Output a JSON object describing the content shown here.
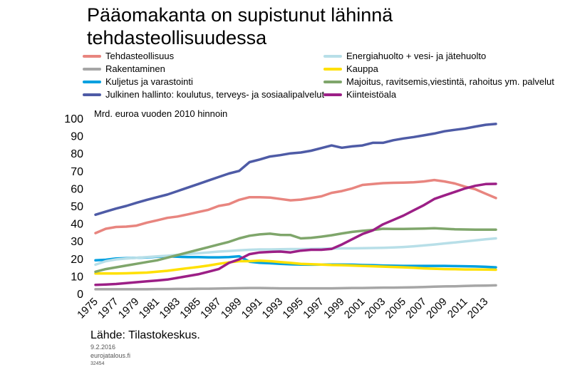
{
  "title": "Pääomakanta on supistunut lähinnä tehdasteollisuudessa",
  "unit_label": "Mrd. euroa vuoden 2010 hinnoin",
  "source": "Lähde: Tilastokeskus.",
  "date": "9.2.2016",
  "site": "eurojatalous.fi",
  "code": "32454",
  "chart_data": {
    "type": "line",
    "title": "Pääomakanta on supistunut lähinnä tehdasteollisuudessa",
    "ylabel": "Mrd. euroa vuoden 2010 hinnoin",
    "xlabel": "",
    "ylim": [
      0,
      100
    ],
    "xlim": [
      1975,
      2014
    ],
    "y_ticks": [
      0,
      10,
      20,
      30,
      40,
      50,
      60,
      70,
      80,
      90,
      100
    ],
    "x_tick_labels": [
      "1975",
      "1977",
      "1979",
      "1981",
      "1983",
      "1985",
      "1987",
      "1989",
      "1991",
      "1993",
      "1995",
      "1997",
      "1999",
      "2001",
      "2003",
      "2005",
      "2007",
      "2009",
      "2011",
      "2013"
    ],
    "grid": false,
    "legend_position": "top",
    "x": [
      1975,
      1976,
      1977,
      1978,
      1979,
      1980,
      1981,
      1982,
      1983,
      1984,
      1985,
      1986,
      1987,
      1988,
      1989,
      1990,
      1991,
      1992,
      1993,
      1994,
      1995,
      1996,
      1997,
      1998,
      1999,
      2000,
      2001,
      2002,
      2003,
      2004,
      2005,
      2006,
      2007,
      2008,
      2009,
      2010,
      2011,
      2012,
      2013,
      2014
    ],
    "series": [
      {
        "name": "Tehdasteollisuus",
        "color": "#e8857f",
        "values": [
          34.5,
          37,
          38,
          38.2,
          38.8,
          40.5,
          41.8,
          43.2,
          44,
          45.2,
          46.5,
          47.8,
          50,
          51,
          53.5,
          55,
          55,
          54.8,
          54,
          53.2,
          53.6,
          54.5,
          55.5,
          57.5,
          58.5,
          60,
          62,
          62.5,
          63,
          63.2,
          63.3,
          63.5,
          64,
          64.8,
          64,
          62.8,
          61,
          59.5,
          57,
          54.5
        ]
      },
      {
        "name": "Rakentaminen",
        "color": "#a6a6a6",
        "values": [
          2.5,
          2.5,
          2.5,
          2.5,
          2.5,
          2.5,
          2.6,
          2.6,
          2.7,
          2.7,
          2.8,
          2.8,
          2.9,
          3,
          3.1,
          3.2,
          3.2,
          3.1,
          3,
          3,
          3,
          3,
          3,
          3,
          3.1,
          3.2,
          3.2,
          3.3,
          3.4,
          3.4,
          3.5,
          3.6,
          3.8,
          4,
          4.1,
          4.2,
          4.4,
          4.5,
          4.6,
          4.7
        ]
      },
      {
        "name": "Kuljetus ja varastointi",
        "color": "#00a0e0",
        "values": [
          19,
          19.3,
          20,
          20.2,
          20.4,
          20.6,
          21,
          21.2,
          21,
          20.8,
          20.8,
          20.7,
          20.7,
          20.8,
          21.3,
          18.2,
          17.6,
          17.3,
          17,
          16.7,
          16.6,
          16.5,
          16.6,
          16.6,
          16.6,
          16.5,
          16.3,
          16.2,
          16,
          15.9,
          15.8,
          15.8,
          15.8,
          15.8,
          15.8,
          15.7,
          15.6,
          15.5,
          15.3,
          15
        ]
      },
      {
        "name": "Julkinen hallinto: koulutus, terveys- ja sosiaalipalvelut",
        "color": "#4e5ba6",
        "values": [
          45,
          46.8,
          48.5,
          50,
          51.8,
          53.5,
          55,
          56.5,
          58.5,
          60.5,
          62.5,
          64.5,
          66.5,
          68.5,
          70,
          75,
          76.5,
          78.2,
          79,
          80,
          80.5,
          81.5,
          83,
          84.5,
          83.2,
          84,
          84.5,
          86,
          86,
          87.5,
          88.5,
          89.3,
          90.3,
          91.3,
          92.6,
          93.4,
          94.2,
          95.3,
          96.3,
          96.8
        ]
      },
      {
        "name": "Energiahuolto + vesi- ja jätehuolto",
        "color": "#b8dfe8",
        "values": [
          16.5,
          18.5,
          19.5,
          20,
          20.4,
          20.8,
          21.2,
          21.6,
          22.1,
          22.6,
          23,
          23.5,
          24,
          24.3,
          24.7,
          25,
          25.2,
          25.2,
          25.3,
          25.4,
          25.4,
          25.5,
          25.6,
          25.7,
          25.8,
          25.8,
          25.9,
          26,
          26.1,
          26.3,
          26.6,
          27,
          27.5,
          28,
          28.6,
          29.2,
          29.8,
          30.4,
          31,
          31.5
        ]
      },
      {
        "name": "Kauppa",
        "color": "#ffe000",
        "values": [
          11.5,
          11.5,
          11.5,
          11.6,
          11.8,
          12,
          12.5,
          13,
          13.8,
          14.5,
          15.2,
          16,
          17,
          17.8,
          18.5,
          18.5,
          18.8,
          18.5,
          18,
          17.5,
          17,
          16.8,
          16.6,
          16.3,
          16.2,
          16,
          15.8,
          15.6,
          15.4,
          15.2,
          15,
          14.7,
          14.4,
          14.2,
          14,
          13.9,
          13.8,
          13.8,
          13.7,
          13.6
        ]
      },
      {
        "name": "Majoitus, ravitsemis,viestintä, rahoitus ym. palvelut",
        "color": "#7fa66b",
        "values": [
          12.5,
          14,
          15,
          16,
          17,
          18,
          19,
          20.5,
          22,
          23.5,
          25,
          26.5,
          28,
          29.5,
          31.5,
          33,
          33.8,
          34.2,
          33.5,
          33.4,
          31.5,
          31.8,
          32.5,
          33.3,
          34.3,
          35.2,
          35.8,
          36.3,
          37,
          36.9,
          36.9,
          37,
          37.1,
          37.3,
          37,
          36.7,
          36.6,
          36.5,
          36.5,
          36.5
        ]
      },
      {
        "name": "Kiinteistöala",
        "color": "#9c1f86",
        "values": [
          5,
          5.2,
          5.5,
          6,
          6.5,
          7,
          7.5,
          8,
          9,
          10,
          11,
          12.5,
          14,
          17.5,
          19.5,
          22.5,
          23.5,
          23.8,
          24,
          23.5,
          24.5,
          25,
          25,
          25.5,
          28,
          31,
          34,
          36,
          39.5,
          42,
          44.5,
          47.5,
          50.5,
          54,
          56,
          58,
          60,
          61.5,
          62.5,
          62.6
        ]
      }
    ]
  }
}
